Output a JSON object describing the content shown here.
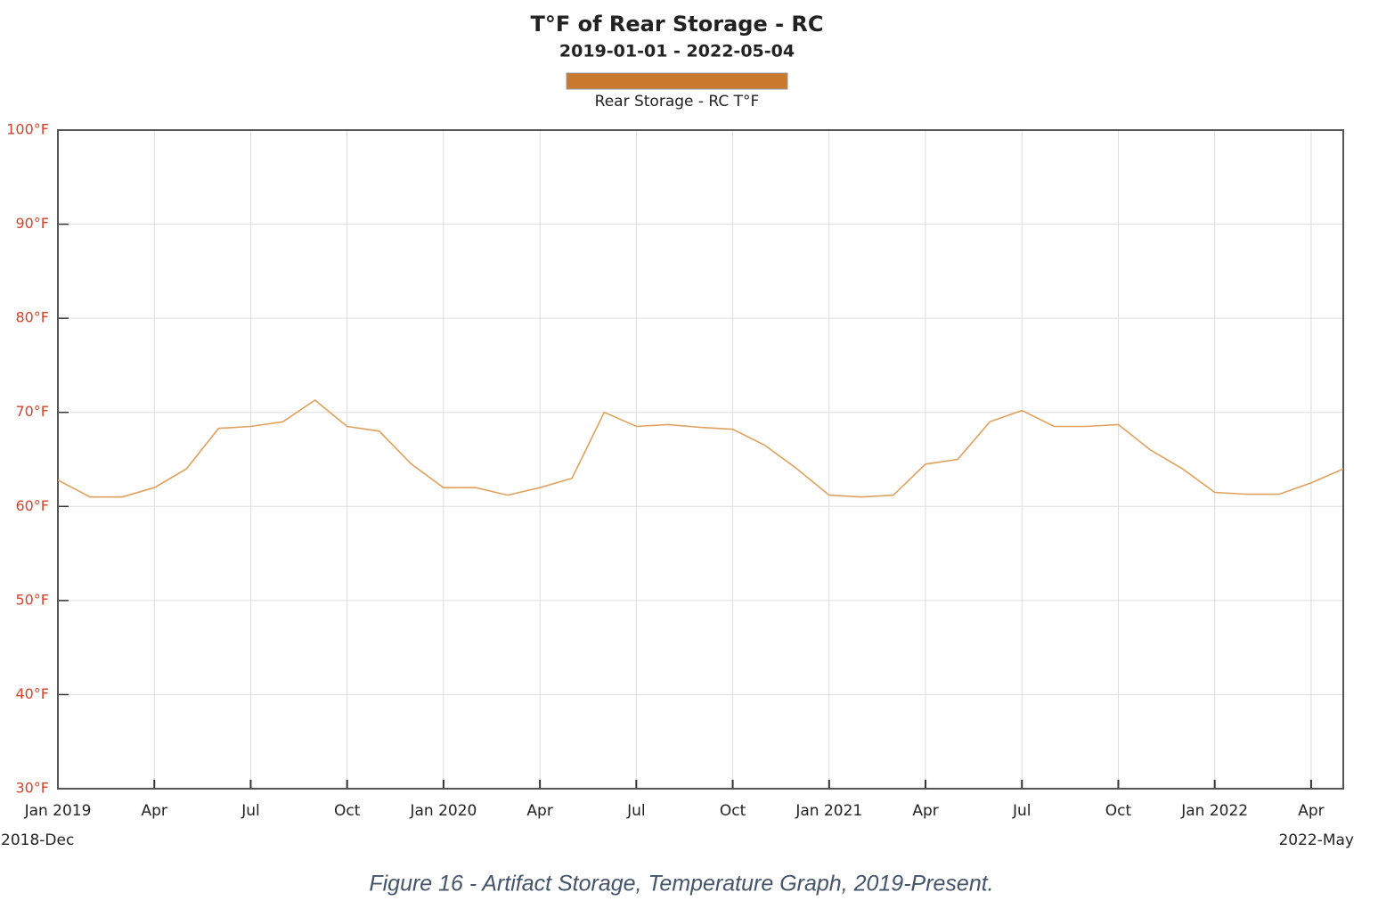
{
  "chart_data": {
    "type": "line",
    "title": "T°F of Rear Storage - RC",
    "subtitle": "2019-01-01 - 2022-05-04",
    "caption": "Figure 16 - Artifact Storage, Temperature Graph, 2019-Present.",
    "x": [
      "2019-01",
      "2019-02",
      "2019-03",
      "2019-04",
      "2019-05",
      "2019-06",
      "2019-07",
      "2019-08",
      "2019-09",
      "2019-10",
      "2019-11",
      "2019-12",
      "2020-01",
      "2020-02",
      "2020-03",
      "2020-04",
      "2020-05",
      "2020-06",
      "2020-07",
      "2020-08",
      "2020-09",
      "2020-10",
      "2020-11",
      "2020-12",
      "2021-01",
      "2021-02",
      "2021-03",
      "2021-04",
      "2021-05",
      "2021-06",
      "2021-07",
      "2021-08",
      "2021-09",
      "2021-10",
      "2021-11",
      "2021-12",
      "2022-01",
      "2022-02",
      "2022-03",
      "2022-04",
      "2022-05"
    ],
    "series": [
      {
        "name": "Rear Storage - RC T°F",
        "color": "#e0a15e",
        "legend_color": "#c8792d",
        "values": [
          62.8,
          61,
          61,
          62,
          64,
          68.3,
          68.5,
          69,
          71.3,
          68.5,
          68,
          64.5,
          62,
          62,
          61.2,
          62,
          63,
          70,
          68.5,
          68.7,
          68.4,
          68.2,
          66.5,
          64,
          61.2,
          61,
          61.2,
          64.5,
          65,
          69,
          70.2,
          68.5,
          68.5,
          68.7,
          66,
          64,
          61.5,
          61.3,
          61.3,
          62.5,
          64
        ]
      }
    ],
    "xlim": [
      "2019-01",
      "2022-05"
    ],
    "xlim_labels": [
      "2018-Dec",
      "2022-May"
    ],
    "xticks": [
      {
        "value": "2019-01",
        "label": "Jan 2019"
      },
      {
        "value": "2019-04",
        "label": "Apr"
      },
      {
        "value": "2019-07",
        "label": "Jul"
      },
      {
        "value": "2019-10",
        "label": "Oct"
      },
      {
        "value": "2020-01",
        "label": "Jan 2020"
      },
      {
        "value": "2020-04",
        "label": "Apr"
      },
      {
        "value": "2020-07",
        "label": "Jul"
      },
      {
        "value": "2020-10",
        "label": "Oct"
      },
      {
        "value": "2021-01",
        "label": "Jan 2021"
      },
      {
        "value": "2021-04",
        "label": "Apr"
      },
      {
        "value": "2021-07",
        "label": "Jul"
      },
      {
        "value": "2021-10",
        "label": "Oct"
      },
      {
        "value": "2022-01",
        "label": "Jan 2022"
      },
      {
        "value": "2022-04",
        "label": "Apr"
      }
    ],
    "ylim": [
      30,
      100
    ],
    "yticks": [
      {
        "value": 30,
        "label": "30°F"
      },
      {
        "value": 40,
        "label": "40°F"
      },
      {
        "value": 50,
        "label": "50°F"
      },
      {
        "value": 60,
        "label": "60°F"
      },
      {
        "value": 70,
        "label": "70°F"
      },
      {
        "value": 80,
        "label": "80°F"
      },
      {
        "value": 90,
        "label": "90°F"
      },
      {
        "value": 100,
        "label": "100°F"
      }
    ],
    "grid": true
  }
}
